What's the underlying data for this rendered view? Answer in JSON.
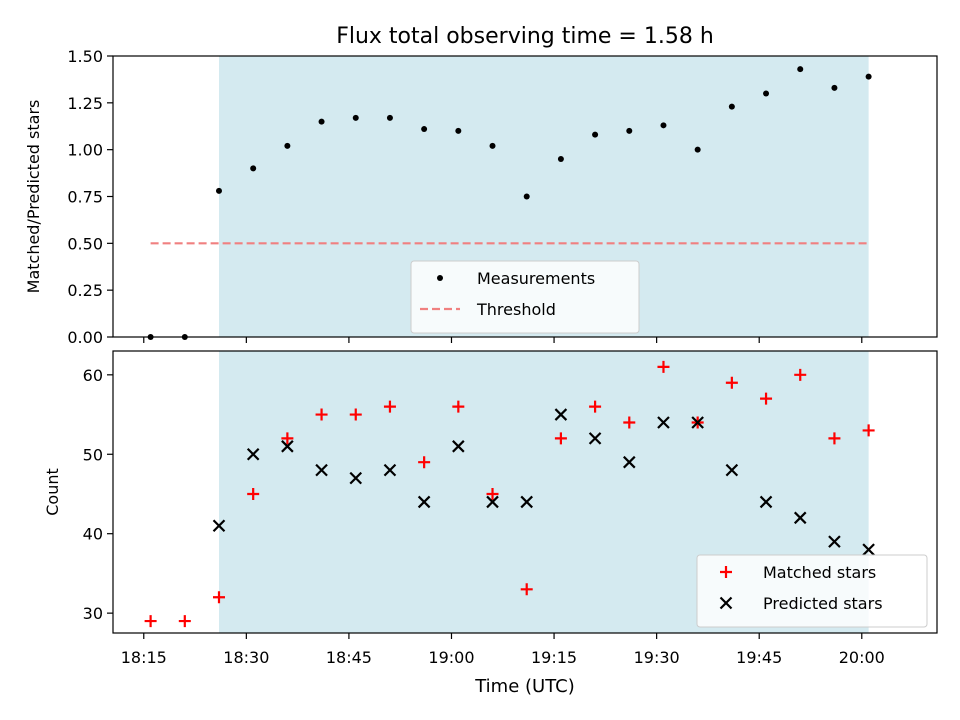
{
  "title": "Flux total observing time = 1.58 h",
  "xlabel": "Time (UTC)",
  "x_ticks": [
    "18:15",
    "18:30",
    "18:45",
    "19:00",
    "19:15",
    "19:30",
    "19:45",
    "20:00"
  ],
  "chart_data": [
    {
      "type": "scatter",
      "ylabel": "Matched/Predicted stars",
      "ylim": [
        0,
        1.5
      ],
      "y_ticks": [
        "0.00",
        "0.25",
        "0.50",
        "0.75",
        "1.00",
        "1.25",
        "1.50"
      ],
      "shaded_span": {
        "from": "18:26",
        "to": "20:01",
        "color": "#d4eaf0"
      },
      "legend": {
        "placement": "lower center"
      },
      "threshold": {
        "name": "Threshold",
        "y": 0.5,
        "from": "18:16",
        "to": "20:01",
        "color": "#f08080"
      },
      "series": [
        {
          "name": "Measurements",
          "color": "#000000",
          "x": [
            "18:16",
            "18:21",
            "18:26",
            "18:31",
            "18:36",
            "18:41",
            "18:46",
            "18:51",
            "18:56",
            "19:01",
            "19:06",
            "19:11",
            "19:16",
            "19:21",
            "19:26",
            "19:31",
            "19:36",
            "19:41",
            "19:46",
            "19:51",
            "19:56",
            "20:01"
          ],
          "y": [
            0.0,
            0.0,
            0.78,
            0.9,
            1.02,
            1.15,
            1.17,
            1.17,
            1.11,
            1.1,
            1.02,
            0.75,
            0.95,
            1.08,
            1.1,
            1.13,
            1.0,
            1.23,
            1.3,
            1.43,
            1.33,
            1.39
          ]
        }
      ]
    },
    {
      "type": "scatter",
      "ylabel": "Count",
      "ylim": [
        27.5,
        63
      ],
      "y_ticks": [
        "30",
        "40",
        "50",
        "60"
      ],
      "shaded_span": {
        "from": "18:26",
        "to": "20:01",
        "color": "#d4eaf0"
      },
      "legend": {
        "placement": "lower right"
      },
      "series": [
        {
          "name": "Matched stars",
          "color": "#ff0000",
          "marker": "+",
          "x": [
            "18:16",
            "18:21",
            "18:26",
            "18:31",
            "18:36",
            "18:41",
            "18:46",
            "18:51",
            "18:56",
            "19:01",
            "19:06",
            "19:11",
            "19:16",
            "19:21",
            "19:26",
            "19:31",
            "19:36",
            "19:41",
            "19:46",
            "19:51",
            "19:56",
            "20:01"
          ],
          "y": [
            29,
            29,
            32,
            45,
            52,
            55,
            55,
            56,
            49,
            56,
            45,
            33,
            52,
            56,
            54,
            61,
            54,
            59,
            57,
            60,
            52,
            53
          ]
        },
        {
          "name": "Predicted stars",
          "color": "#000000",
          "marker": "x",
          "x": [
            "18:26",
            "18:31",
            "18:36",
            "18:41",
            "18:46",
            "18:51",
            "18:56",
            "19:01",
            "19:06",
            "19:11",
            "19:16",
            "19:21",
            "19:26",
            "19:31",
            "19:36",
            "19:41",
            "19:46",
            "19:51",
            "19:56",
            "20:01"
          ],
          "y": [
            41,
            50,
            51,
            48,
            47,
            48,
            44,
            51,
            44,
            44,
            55,
            52,
            49,
            54,
            54,
            48,
            44,
            42,
            39,
            38
          ]
        }
      ]
    }
  ]
}
